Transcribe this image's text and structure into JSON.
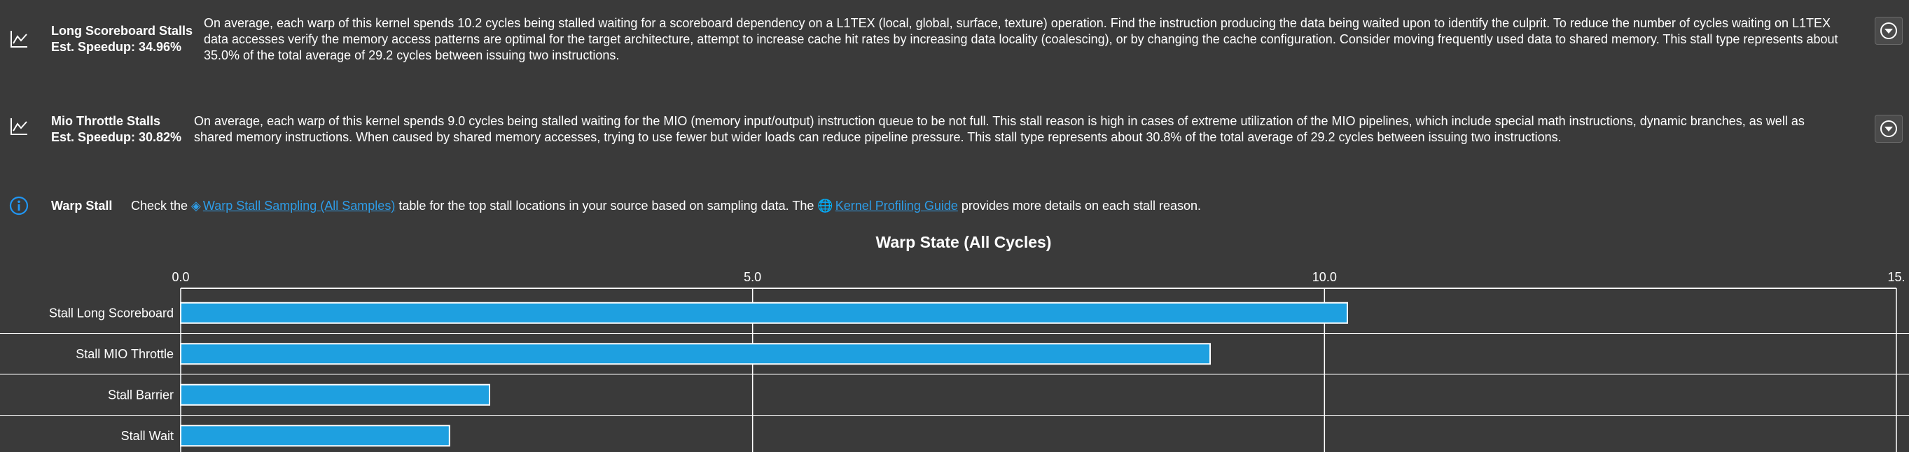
{
  "rules": [
    {
      "title": "Long Scoreboard Stalls",
      "speedup": "Est. Speedup: 34.96%",
      "body": "On average, each warp of this kernel spends 10.2 cycles being stalled waiting for a scoreboard dependency on a L1TEX (local, global, surface, texture) operation. Find the instruction producing the data being waited upon to identify the culprit. To reduce the number of cycles waiting on L1TEX data accesses verify the memory access patterns are optimal for the target architecture, attempt to increase cache hit rates by increasing data locality (coalescing), or by changing the cache configuration. Consider moving frequently used data to shared memory. This stall type represents about 35.0% of the total average of 29.2 cycles between issuing two instructions."
    },
    {
      "title": "Mio Throttle Stalls",
      "speedup": "Est. Speedup: 30.82%",
      "body": "On average, each warp of this kernel spends 9.0 cycles being stalled waiting for the MIO (memory input/output) instruction queue to be not full. This stall reason is high in cases of extreme utilization of the MIO pipelines, which include special math instructions, dynamic branches, as well as shared memory instructions. When caused by shared memory accesses, trying to use fewer but wider loads can reduce pipeline pressure. This stall type represents about 30.8% of the total average of 29.2 cycles between issuing two instructions."
    }
  ],
  "info": {
    "title": "Warp Stall",
    "text_before": "Check the ",
    "link1_text": "Warp Stall Sampling (All Samples)",
    "text_middle": " table for the top stall locations in your source based on sampling data. The ",
    "link2_text": "Kernel Profiling Guide",
    "text_after": " provides more details on each stall reason."
  },
  "icons": {
    "rule": "line-chart-icon",
    "expand": "chevron-down-circle-icon",
    "info": "info-icon",
    "link1": "source-link-icon",
    "link2": "globe-icon"
  },
  "colors": {
    "background": "#3a3a3a",
    "bar": "#1ea0e0",
    "link": "#2e9ce6",
    "info_icon": "#2196f3"
  },
  "chart_data": {
    "type": "bar",
    "orientation": "horizontal",
    "title": "Warp State (All Cycles)",
    "categories": [
      "Stall Long Scoreboard",
      "Stall MIO Throttle",
      "Stall Barrier",
      "Stall Wait"
    ],
    "values": [
      10.2,
      9.0,
      2.7,
      2.35
    ],
    "xlim": [
      0,
      15
    ],
    "ticks": [
      0,
      5,
      10,
      15
    ],
    "tick_labels": [
      "0.0",
      "5.0",
      "10.0",
      "15."
    ],
    "grid": true
  }
}
